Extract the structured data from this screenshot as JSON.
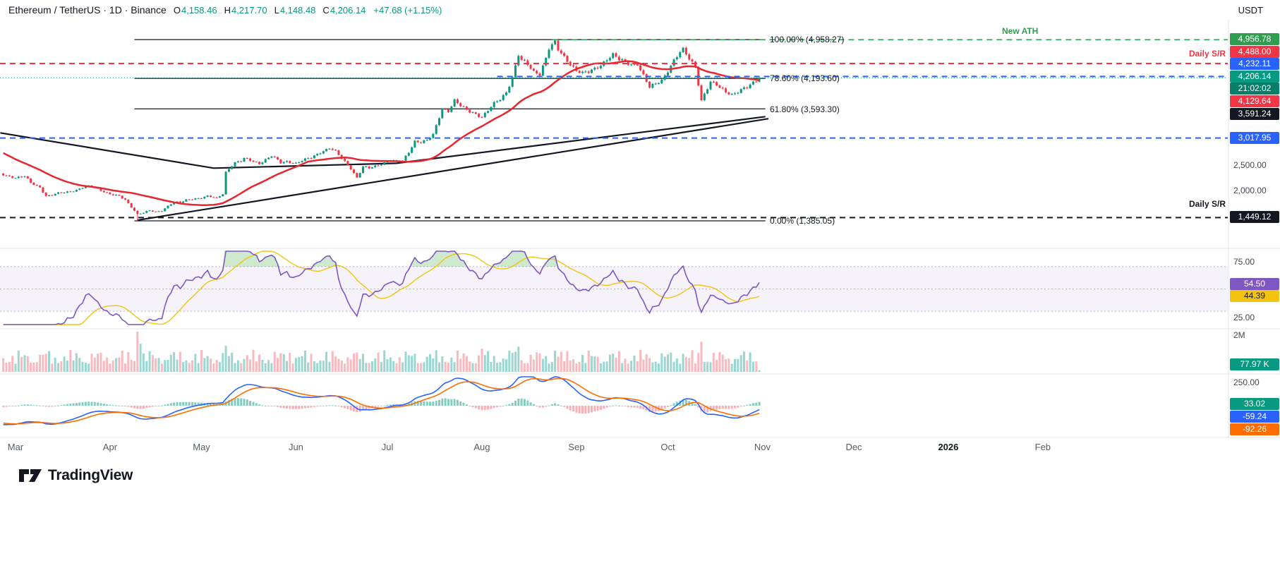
{
  "colors": {
    "up": "#089981",
    "down": "#f23645",
    "ma": "#e8262d",
    "blue": "#2962ff",
    "black": "#131722",
    "ath_green": "#2f9e4f",
    "purple": "#7e57c2",
    "yellow": "#f2c40f",
    "orange": "#ff6d00",
    "teal_badge": "#089981",
    "countdown_bg": "#077e68",
    "axis_text": "#434651"
  },
  "header": {
    "title": "Ethereum / TetherUS · 1D · Binance",
    "o_label": "O",
    "o_value": "4,158.46",
    "h_label": "H",
    "h_value": "4,217.70",
    "l_label": "L",
    "l_value": "4,148.48",
    "c_label": "C",
    "c_value": "4,206.14",
    "change": "+47.68 (+1.15%)",
    "unit": "USDT"
  },
  "annotations": {
    "new_ath": "New ATH",
    "daily_sr_upper": "Daily S/R",
    "daily_sr_lower": "Daily S/R",
    "fib_100": "100.00% (4,958.27)",
    "fib_786": "78.60% (4,193.60)",
    "fib_618": "61.80% (3,593.30)",
    "fib_0": "0.00% (1,385.05)"
  },
  "price_scale": {
    "ath_badge": "4,956.78",
    "sr_upper_badge": "4,488.00",
    "level_4232_badge": "4,232.11",
    "last_badge": "4,206.14",
    "countdown": "21:02:02",
    "level_4129_badge": "4,129.64",
    "level_3591_badge": "3,591.24",
    "level_3017_badge": "3,017.95",
    "grid_2500": "2,500.00",
    "grid_2000": "2,000.00",
    "sr_lower_badge": "1,449.12"
  },
  "rsi_scale": {
    "top": "75.00",
    "bottom": "25.00",
    "rsi_badge": "54.50",
    "signal_badge": "44.39"
  },
  "volume_scale": {
    "top": "2M",
    "badge": "77.97 K"
  },
  "macd_scale": {
    "top": "250.00",
    "hist_badge": "33.02",
    "macd_badge": "-59.24",
    "signal_badge": "-92.26"
  },
  "time_axis": [
    {
      "label": "Mar",
      "day": 0
    },
    {
      "label": "Apr",
      "day": 31
    },
    {
      "label": "May",
      "day": 61
    },
    {
      "label": "Jun",
      "day": 92
    },
    {
      "label": "Jul",
      "day": 122
    },
    {
      "label": "Aug",
      "day": 153
    },
    {
      "label": "Sep",
      "day": 184
    },
    {
      "label": "Oct",
      "day": 214
    },
    {
      "label": "Nov",
      "day": 245
    },
    {
      "label": "Dec",
      "day": 275
    },
    {
      "label": "2026",
      "day": 306,
      "bold": true
    },
    {
      "label": "Feb",
      "day": 337
    }
  ],
  "footer": {
    "brand": "TradingView"
  },
  "chart_data": {
    "type": "candlestick",
    "title": "Ethereum / TetherUS 1D Binance",
    "x_unit": "days_since_2025-03-01",
    "price_axis_visible_range": [
      940,
      5350
    ],
    "last_price": 4206.14,
    "draw_from": -4,
    "ath": {
      "day": 177,
      "price": 4958.27
    },
    "cycle_low": {
      "day": 40,
      "price": 1385.05
    },
    "close_anchors": [
      [
        -36,
        3350
      ],
      [
        -28,
        3050
      ],
      [
        -20,
        2800
      ],
      [
        -14,
        2640
      ],
      [
        -10,
        2480
      ],
      [
        -7,
        2350
      ],
      [
        -4,
        2300
      ],
      [
        0,
        2230
      ],
      [
        3,
        2260
      ],
      [
        5,
        2140
      ],
      [
        8,
        2050
      ],
      [
        10,
        1870
      ],
      [
        12,
        1890
      ],
      [
        14,
        1930
      ],
      [
        17,
        1960
      ],
      [
        20,
        1990
      ],
      [
        23,
        2060
      ],
      [
        25,
        2070
      ],
      [
        28,
        1990
      ],
      [
        31,
        1910
      ],
      [
        34,
        1870
      ],
      [
        36,
        1800
      ],
      [
        38,
        1660
      ],
      [
        40,
        1520
      ],
      [
        42,
        1545
      ],
      [
        44,
        1585
      ],
      [
        46,
        1560
      ],
      [
        48,
        1590
      ],
      [
        50,
        1680
      ],
      [
        52,
        1760
      ],
      [
        54,
        1740
      ],
      [
        56,
        1795
      ],
      [
        58,
        1820
      ],
      [
        61,
        1840
      ],
      [
        63,
        1870
      ],
      [
        66,
        1830
      ],
      [
        68,
        1920
      ],
      [
        69,
        2350
      ],
      [
        71,
        2480
      ],
      [
        72,
        2530
      ],
      [
        74,
        2560
      ],
      [
        75,
        2610
      ],
      [
        77,
        2580
      ],
      [
        80,
        2520
      ],
      [
        82,
        2590
      ],
      [
        84,
        2660
      ],
      [
        86,
        2580
      ],
      [
        87,
        2530
      ],
      [
        89,
        2560
      ],
      [
        92,
        2520
      ],
      [
        94,
        2570
      ],
      [
        97,
        2630
      ],
      [
        100,
        2740
      ],
      [
        103,
        2820
      ],
      [
        105,
        2750
      ],
      [
        106,
        2680
      ],
      [
        108,
        2550
      ],
      [
        110,
        2420
      ],
      [
        112,
        2240
      ],
      [
        114,
        2450
      ],
      [
        116,
        2420
      ],
      [
        118,
        2460
      ],
      [
        120,
        2510
      ],
      [
        123,
        2590
      ],
      [
        125,
        2550
      ],
      [
        127,
        2560
      ],
      [
        129,
        2740
      ],
      [
        131,
        2960
      ],
      [
        133,
        2940
      ],
      [
        135,
        2970
      ],
      [
        137,
        3080
      ],
      [
        140,
        3600
      ],
      [
        142,
        3560
      ],
      [
        144,
        3760
      ],
      [
        146,
        3650
      ],
      [
        148,
        3560
      ],
      [
        150,
        3520
      ],
      [
        153,
        3440
      ],
      [
        155,
        3560
      ],
      [
        157,
        3690
      ],
      [
        159,
        3780
      ],
      [
        161,
        3920
      ],
      [
        163,
        4220
      ],
      [
        165,
        4660
      ],
      [
        166,
        4550
      ],
      [
        168,
        4460
      ],
      [
        170,
        4320
      ],
      [
        172,
        4290
      ],
      [
        174,
        4600
      ],
      [
        175,
        4790
      ],
      [
        177,
        4900
      ],
      [
        178,
        4750
      ],
      [
        180,
        4610
      ],
      [
        182,
        4480
      ],
      [
        184,
        4360
      ],
      [
        186,
        4300
      ],
      [
        188,
        4310
      ],
      [
        190,
        4380
      ],
      [
        192,
        4460
      ],
      [
        194,
        4580
      ],
      [
        196,
        4660
      ],
      [
        198,
        4560
      ],
      [
        200,
        4510
      ],
      [
        202,
        4470
      ],
      [
        204,
        4490
      ],
      [
        206,
        4250
      ],
      [
        208,
        4010
      ],
      [
        210,
        4080
      ],
      [
        212,
        4160
      ],
      [
        214,
        4350
      ],
      [
        216,
        4550
      ],
      [
        218,
        4700
      ],
      [
        219,
        4750
      ],
      [
        221,
        4580
      ],
      [
        223,
        4430
      ],
      [
        225,
        3760
      ],
      [
        226,
        3890
      ],
      [
        228,
        4110
      ],
      [
        230,
        4060
      ],
      [
        231,
        4010
      ],
      [
        233,
        3940
      ],
      [
        235,
        3880
      ],
      [
        237,
        3930
      ],
      [
        238,
        3960
      ],
      [
        240,
        4010
      ],
      [
        241,
        4060
      ],
      [
        243,
        4160
      ],
      [
        244,
        4206.14
      ]
    ],
    "levels": [
      {
        "name": "fib-100",
        "price": 4958.27,
        "from_day": 39,
        "to_day": 246,
        "style": "solid",
        "color_key": "black",
        "width": 1.2
      },
      {
        "name": "fib-786",
        "price": 4193.6,
        "from_day": 39,
        "to_day": 246,
        "style": "solid",
        "color_key": "black",
        "width": 1.2
      },
      {
        "name": "fib-618",
        "price": 3593.3,
        "from_day": 39,
        "to_day": 246,
        "style": "solid",
        "color_key": "black",
        "width": 1.2
      },
      {
        "name": "fib-0",
        "price": 1385.05,
        "from_day": 39,
        "to_day": 246,
        "style": "solid",
        "color_key": "black",
        "width": 1.2
      },
      {
        "name": "new-ath-line",
        "price": 4956.78,
        "from_day": 176,
        "style": "dashed",
        "color_key": "ath_green",
        "width": 1.6
      },
      {
        "name": "daily-sr-upper",
        "price": 4488.0,
        "style": "dashed",
        "color_key": "down",
        "width": 2
      },
      {
        "name": "sr-4232",
        "price": 4232.11,
        "from_day": 158,
        "style": "dashed",
        "color_key": "blue",
        "width": 2
      },
      {
        "name": "sr-3017",
        "price": 3017.95,
        "style": "dashed",
        "color_key": "blue",
        "width": 2
      },
      {
        "name": "daily-sr-lower",
        "price": 1449.12,
        "style": "dashed",
        "color_key": "black",
        "width": 2
      },
      {
        "name": "last-price-line",
        "price": 4206.14,
        "style": "dotted",
        "color_key": "up",
        "width": 1
      }
    ],
    "fib_retracement": {
      "high": 4958.27,
      "low": 1385.05,
      "levels": [
        {
          "pct": "100.00%",
          "price": 4958.27
        },
        {
          "pct": "78.60%",
          "price": 4193.6
        },
        {
          "pct": "61.80%",
          "price": 3593.3
        },
        {
          "pct": "0.00%",
          "price": 1385.05
        }
      ]
    },
    "trendlines": [
      {
        "name": "upper-trendline",
        "color_key": "black",
        "width": 2.2,
        "points": [
          [
            -5,
            3120
          ],
          [
            65,
            2425
          ],
          [
            125,
            2520
          ],
          [
            246,
            3440
          ]
        ]
      },
      {
        "name": "lower-trendline",
        "color_key": "black",
        "width": 2.2,
        "points": [
          [
            40,
            1398
          ],
          [
            247,
            3400
          ]
        ]
      }
    ],
    "volume_spikes": {
      "10": 900000,
      "40": 2000000,
      "41": 1400000,
      "69": 1300000,
      "90": 950000,
      "131": 900000,
      "153": 1150000,
      "163": 950000,
      "165": 1250000,
      "177": 1050000,
      "219": 900000,
      "225": 1500000,
      "244": 77970
    },
    "indicators": {
      "ma_on_chart": {
        "type": "SMA",
        "length": 28,
        "color_key": "ma"
      },
      "rsi": {
        "length": 14,
        "last": 54.5,
        "signal_last": 44.39,
        "band": [
          30,
          70
        ],
        "scale": [
          25,
          75
        ]
      },
      "volume": {
        "last": "77.97 K",
        "scale_top": "2M"
      },
      "macd": {
        "fast": 12,
        "slow": 26,
        "signal": 9,
        "last_macd": -59.24,
        "last_signal": -92.26,
        "last_hist": 33.02,
        "scale_ref": 250
      }
    }
  }
}
